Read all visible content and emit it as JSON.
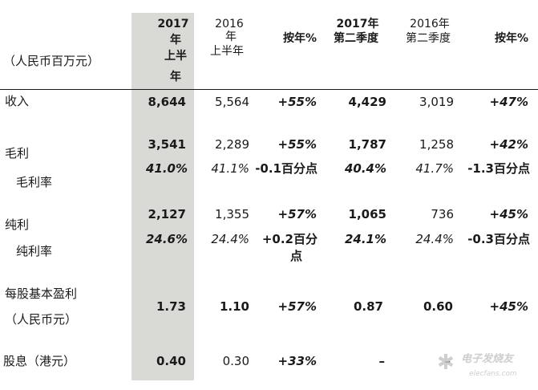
{
  "header": {
    "unit": "（人民币百万元）",
    "col_h1_2017": {
      "l1": "2017",
      "l2": "年",
      "l3": "上半",
      "l4": "年"
    },
    "col_h1_2016": {
      "l1": "2016",
      "l2": "年",
      "l3": "上半年"
    },
    "col_yoy_h1": "按年%",
    "col_q2_2017": {
      "l1": "2017年",
      "l2": "第二季度"
    },
    "col_q2_2016": {
      "l1": "2016年",
      "l2": "第二季度"
    },
    "col_yoy_q2": "按年%"
  },
  "rows": {
    "revenue": {
      "label": "收入",
      "h1_2017": "8,644",
      "h1_2016": "5,564",
      "yoy_h1": "+55%",
      "q2_2017": "4,429",
      "q2_2016": "3,019",
      "yoy_q2": "+47%"
    },
    "gross_profit": {
      "label": "毛利",
      "h1_2017": "3,541",
      "h1_2016": "2,289",
      "yoy_h1": "+55%",
      "q2_2017": "1,787",
      "q2_2016": "1,258",
      "yoy_q2": "+42%"
    },
    "gross_margin": {
      "label": "毛利率",
      "h1_2017": "41.0%",
      "h1_2016": "41.1%",
      "yoy_h1": "-0.1百分点",
      "q2_2017": "40.4%",
      "q2_2016": "41.7%",
      "yoy_q2": "-1.3百分点"
    },
    "net_profit": {
      "label": "纯利",
      "h1_2017": "2,127",
      "h1_2016": "1,355",
      "yoy_h1": "+57%",
      "q2_2017": "1,065",
      "q2_2016": "736",
      "yoy_q2": "+45%"
    },
    "net_margin": {
      "label": "纯利率",
      "h1_2017": "24.6%",
      "h1_2016": "24.4%",
      "yoy_h1_l1": "+0.2百分",
      "yoy_h1_l2": "点",
      "q2_2017": "24.1%",
      "q2_2016": "24.4%",
      "yoy_q2": "-0.3百分点"
    },
    "eps": {
      "label_l1": "每股基本盈利",
      "label_l2": "（人民币元）",
      "h1_2017": "1.73",
      "h1_2016": "1.10",
      "yoy_h1": "+57%",
      "q2_2017": "0.87",
      "q2_2016": "0.60",
      "yoy_q2": "+45%"
    },
    "dividend": {
      "label": "股息（港元）",
      "h1_2017": "0.40",
      "h1_2016": "0.30",
      "yoy_h1": "+33%",
      "q2_2017": "–",
      "q2_2016": "–"
    }
  },
  "watermark": {
    "brand": "电子发烧友",
    "site": "elecfans.com"
  }
}
